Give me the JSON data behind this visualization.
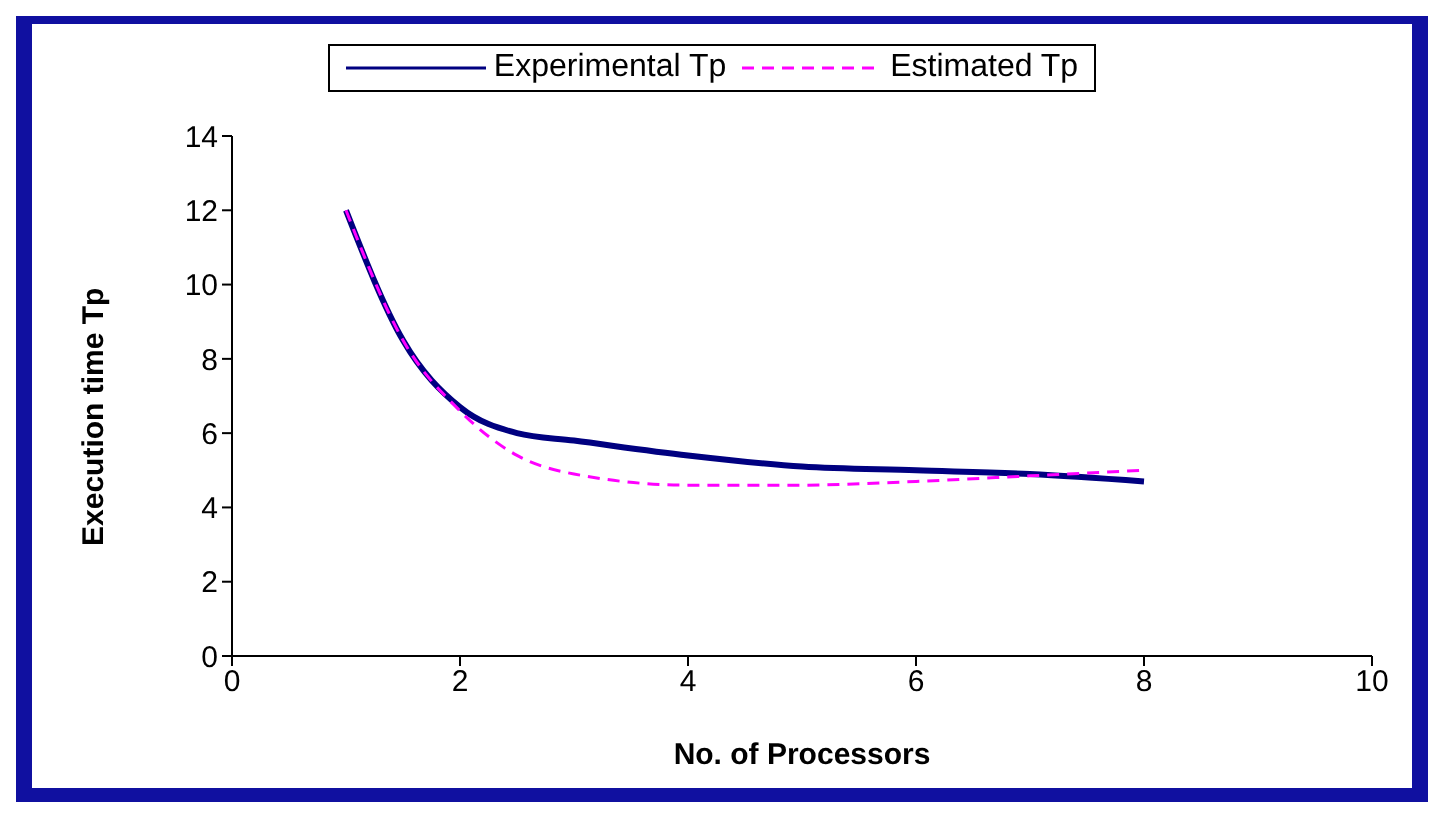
{
  "chart_data": {
    "type": "line",
    "xlabel": "No. of Processors",
    "ylabel": "Execution time Tp",
    "xlim": [
      0,
      10
    ],
    "xticks": [
      0,
      2,
      4,
      6,
      8,
      10
    ],
    "ylim": [
      0,
      14
    ],
    "yticks": [
      0,
      2,
      4,
      6,
      8,
      10,
      12,
      14
    ],
    "grid": false,
    "legend": "top",
    "marker": "none",
    "series": [
      {
        "name": "Experimental Tp",
        "color": "#000080",
        "line_style": "solid",
        "x": [
          1,
          1.5,
          2,
          2.5,
          3,
          4,
          5,
          6,
          7,
          8
        ],
        "values": [
          12,
          8.5,
          6.7,
          6.0,
          5.8,
          5.4,
          5.1,
          5.0,
          4.9,
          4.7
        ]
      },
      {
        "name": "Estimated Tp",
        "color": "#ff00ff",
        "line_style": "dashed",
        "x": [
          1,
          1.5,
          2,
          2.5,
          3,
          4,
          5,
          6,
          7,
          8
        ],
        "values": [
          12,
          8.5,
          6.6,
          5.4,
          4.9,
          4.6,
          4.6,
          4.7,
          4.85,
          5.0
        ]
      }
    ]
  }
}
